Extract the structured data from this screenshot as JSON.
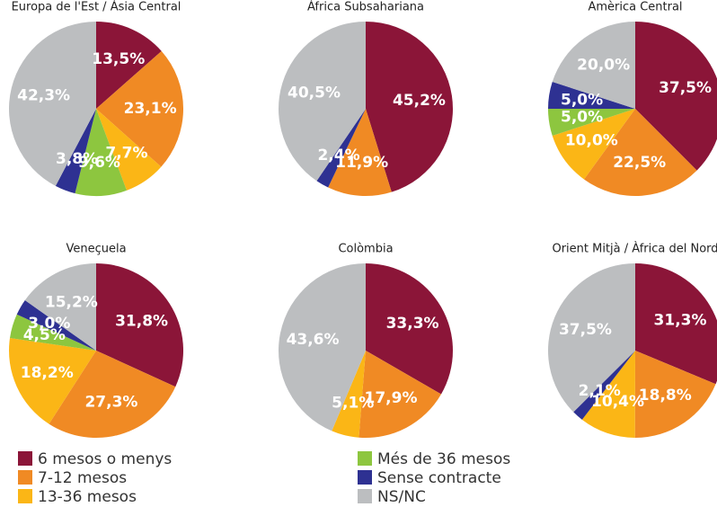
{
  "legend": {
    "labels": [
      "6 mesos o menys",
      "7-12 mesos",
      "13-36 mesos",
      "Més de 36 mesos",
      "Sense contracte",
      "NS/NC"
    ],
    "colors": [
      "#8b1538",
      "#f08a24",
      "#fbb616",
      "#8dc63f",
      "#2e3192",
      "#bcbec0"
    ]
  },
  "chart_data": [
    {
      "type": "pie",
      "title": "Europa de l'Est / Àsia Central",
      "values": [
        13.5,
        23.1,
        7.7,
        9.6,
        3.8,
        42.3
      ],
      "value_labels": [
        "13,5%",
        "23,1%",
        "7,7%",
        "9,6%",
        "3,8%",
        "42,3%"
      ]
    },
    {
      "type": "pie",
      "title": "Àfrica Subsahariana",
      "values": [
        45.2,
        11.9,
        null,
        null,
        2.4,
        40.5
      ],
      "value_labels": [
        "45,2%",
        "11,9%",
        null,
        null,
        "2,4%",
        "40,5%"
      ]
    },
    {
      "type": "pie",
      "title": "Amèrica Central",
      "values": [
        37.5,
        22.5,
        10.0,
        5.0,
        5.0,
        20.0
      ],
      "value_labels": [
        "37,5%",
        "22,5%",
        "10,0%",
        "5,0%",
        "5,0%",
        "20,0%"
      ]
    },
    {
      "type": "pie",
      "title": "Veneçuela",
      "values": [
        31.8,
        27.3,
        18.2,
        4.5,
        3.0,
        15.2
      ],
      "value_labels": [
        "31,8%",
        "27,3%",
        "18,2%",
        "4,5%",
        "3,0%",
        "15,2%"
      ]
    },
    {
      "type": "pie",
      "title": "Colòmbia",
      "values": [
        33.3,
        17.9,
        5.1,
        null,
        null,
        43.6
      ],
      "value_labels": [
        "33,3%",
        "17,9%",
        "5,1%",
        null,
        null,
        "43,6%"
      ]
    },
    {
      "type": "pie",
      "title": "Orient Mitjà / Àfrica del Nord",
      "values": [
        31.3,
        18.8,
        10.4,
        null,
        2.1,
        37.5
      ],
      "value_labels": [
        "31,3%",
        "18,8%",
        "10,4%",
        null,
        "2,1%",
        "37,5%"
      ]
    }
  ]
}
